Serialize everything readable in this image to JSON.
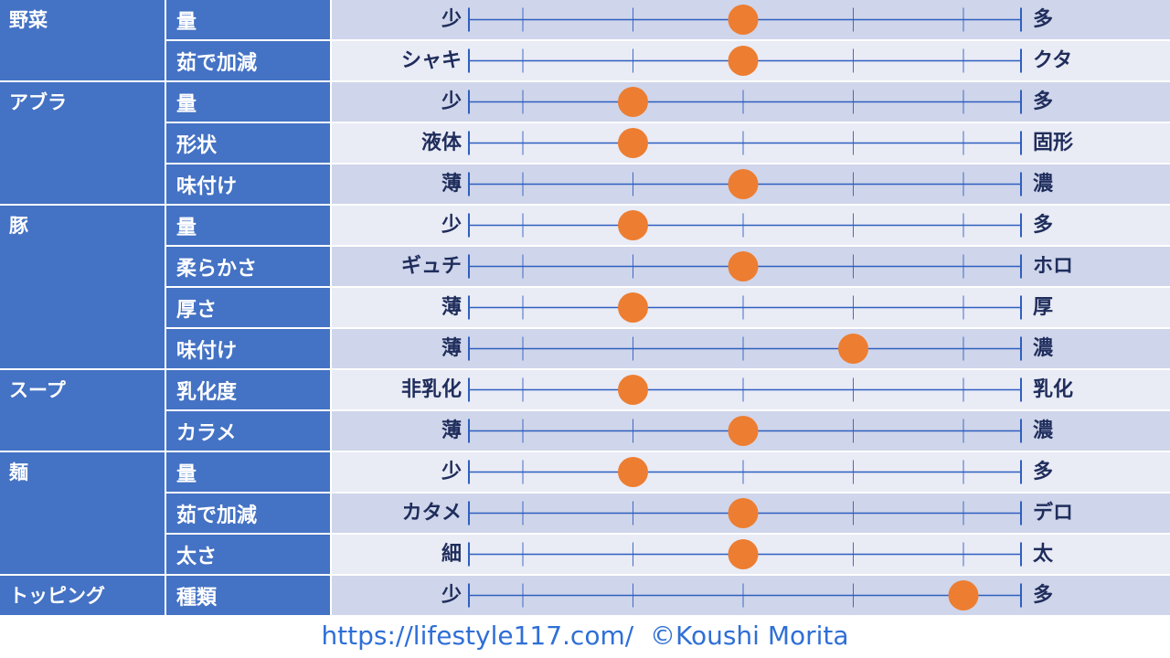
{
  "chart_data": {
    "type": "scatter",
    "scale_steps": 5,
    "groups": [
      {
        "category": "野菜",
        "items": [
          {
            "label": "量",
            "left": "少",
            "right": "多",
            "value": 3
          },
          {
            "label": "茹で加減",
            "left": "シャキ",
            "right": "クタ",
            "value": 3
          }
        ]
      },
      {
        "category": "アブラ",
        "items": [
          {
            "label": "量",
            "left": "少",
            "right": "多",
            "value": 2
          },
          {
            "label": "形状",
            "left": "液体",
            "right": "固形",
            "value": 2
          },
          {
            "label": "味付け",
            "left": "薄",
            "right": "濃",
            "value": 3
          }
        ]
      },
      {
        "category": "豚",
        "items": [
          {
            "label": "量",
            "left": "少",
            "right": "多",
            "value": 2
          },
          {
            "label": "柔らかさ",
            "left": "ギュチ",
            "right": "ホロ",
            "value": 3
          },
          {
            "label": "厚さ",
            "left": "薄",
            "right": "厚",
            "value": 2
          },
          {
            "label": "味付け",
            "left": "薄",
            "right": "濃",
            "value": 4
          }
        ]
      },
      {
        "category": "スープ",
        "items": [
          {
            "label": "乳化度",
            "left": "非乳化",
            "right": "乳化",
            "value": 2
          },
          {
            "label": "カラメ",
            "left": "薄",
            "right": "濃",
            "value": 3
          }
        ]
      },
      {
        "category": "麺",
        "items": [
          {
            "label": "量",
            "left": "少",
            "right": "多",
            "value": 2
          },
          {
            "label": "茹で加減",
            "left": "カタメ",
            "right": "デロ",
            "value": 3
          },
          {
            "label": "太さ",
            "left": "細",
            "right": "太",
            "value": 3
          }
        ]
      },
      {
        "category": "トッピング",
        "items": [
          {
            "label": "種類",
            "left": "少",
            "right": "多",
            "value": 5
          }
        ]
      }
    ]
  },
  "colors": {
    "header_blue": "#4472c4",
    "row_dark": "#cfd5ea",
    "row_light": "#e9ebf5",
    "line": "#2f5fbf",
    "dot": "#ed7d31",
    "label_text": "#1f2d5c",
    "footer_text": "#2f6fd6"
  },
  "footer": {
    "url": "https://lifestyle117.com/",
    "copyright": "©Koushi Morita"
  }
}
